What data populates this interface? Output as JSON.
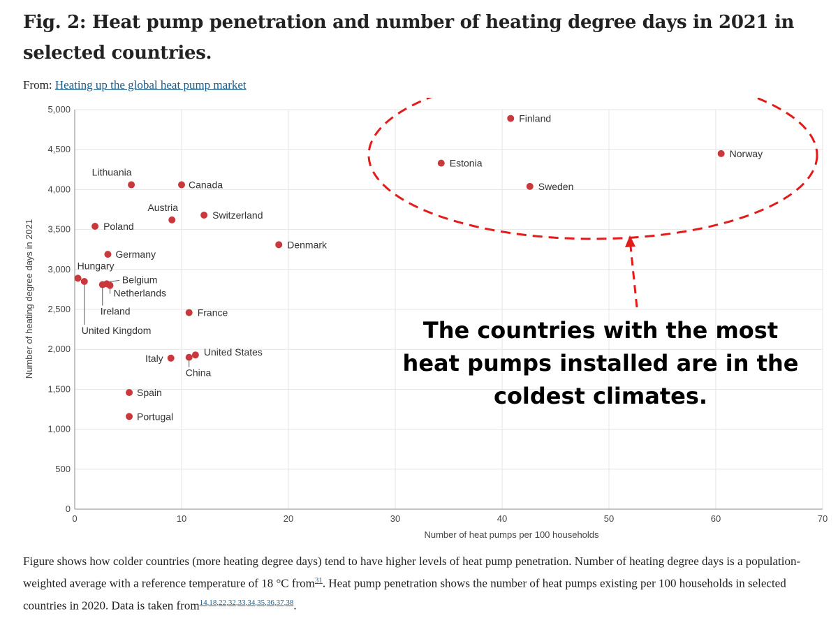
{
  "figure": {
    "title": "Fig. 2: Heat pump penetration and number of heating degree days in 2021 in selected countries.",
    "from_label": "From:",
    "from_link": "Heating up the global heat pump market",
    "caption_part1": "Figure shows how colder countries (more heating degree days) tend to have higher levels of heat pump penetration. Number of heating degree days is a population-weighted average with a reference temperature of 18 °C from",
    "caption_ref1": "31",
    "caption_part2": ". Heat pump penetration shows the number of heat pumps existing per 100 households in selected countries in 2020. Data is taken from",
    "caption_refs": [
      "14",
      "18",
      "22",
      "32",
      "33",
      "34",
      "35",
      "36",
      "37",
      "38"
    ],
    "caption_end": "."
  },
  "annotation": {
    "text": "The countries with the most heat pumps installed are in the coldest climates.",
    "color": "#e31b1b"
  },
  "chart_data": {
    "type": "scatter",
    "xlabel": "Number of heat pumps per 100 households",
    "ylabel": "Number of heating degree days in 2021",
    "xlim": [
      0,
      70
    ],
    "ylim": [
      0,
      5000
    ],
    "xticks": [
      0,
      10,
      20,
      30,
      40,
      50,
      60,
      70
    ],
    "yticks": [
      0,
      500,
      1000,
      1500,
      2000,
      2500,
      3000,
      3500,
      4000,
      4500,
      5000
    ],
    "ytick_labels": [
      "0",
      "500",
      "1,000",
      "1,500",
      "2,000",
      "2,500",
      "3,000",
      "3,500",
      "4,000",
      "4,500",
      "5,000"
    ],
    "grid": true,
    "marker_color": "#c8383c",
    "points": [
      {
        "country": "Finland",
        "x": 40.8,
        "y": 4890
      },
      {
        "country": "Norway",
        "x": 60.5,
        "y": 4450
      },
      {
        "country": "Estonia",
        "x": 34.3,
        "y": 4330
      },
      {
        "country": "Sweden",
        "x": 42.6,
        "y": 4040
      },
      {
        "country": "Lithuania",
        "x": 5.3,
        "y": 4060
      },
      {
        "country": "Canada",
        "x": 10.0,
        "y": 4060
      },
      {
        "country": "Austria",
        "x": 9.1,
        "y": 3620
      },
      {
        "country": "Switzerland",
        "x": 12.1,
        "y": 3680
      },
      {
        "country": "Poland",
        "x": 1.9,
        "y": 3540
      },
      {
        "country": "Denmark",
        "x": 19.1,
        "y": 3310
      },
      {
        "country": "Germany",
        "x": 3.1,
        "y": 3190
      },
      {
        "country": "Hungary",
        "x": 0.3,
        "y": 2890
      },
      {
        "country": "United Kingdom",
        "x": 0.9,
        "y": 2850
      },
      {
        "country": "Ireland",
        "x": 2.6,
        "y": 2810
      },
      {
        "country": "Belgium",
        "x": 3.0,
        "y": 2820
      },
      {
        "country": "Netherlands",
        "x": 3.3,
        "y": 2800
      },
      {
        "country": "France",
        "x": 10.7,
        "y": 2460
      },
      {
        "country": "Italy",
        "x": 9.0,
        "y": 1890
      },
      {
        "country": "China",
        "x": 10.7,
        "y": 1900
      },
      {
        "country": "United States",
        "x": 11.3,
        "y": 1930
      },
      {
        "country": "Spain",
        "x": 5.1,
        "y": 1460
      },
      {
        "country": "Portugal",
        "x": 5.1,
        "y": 1160
      }
    ]
  }
}
